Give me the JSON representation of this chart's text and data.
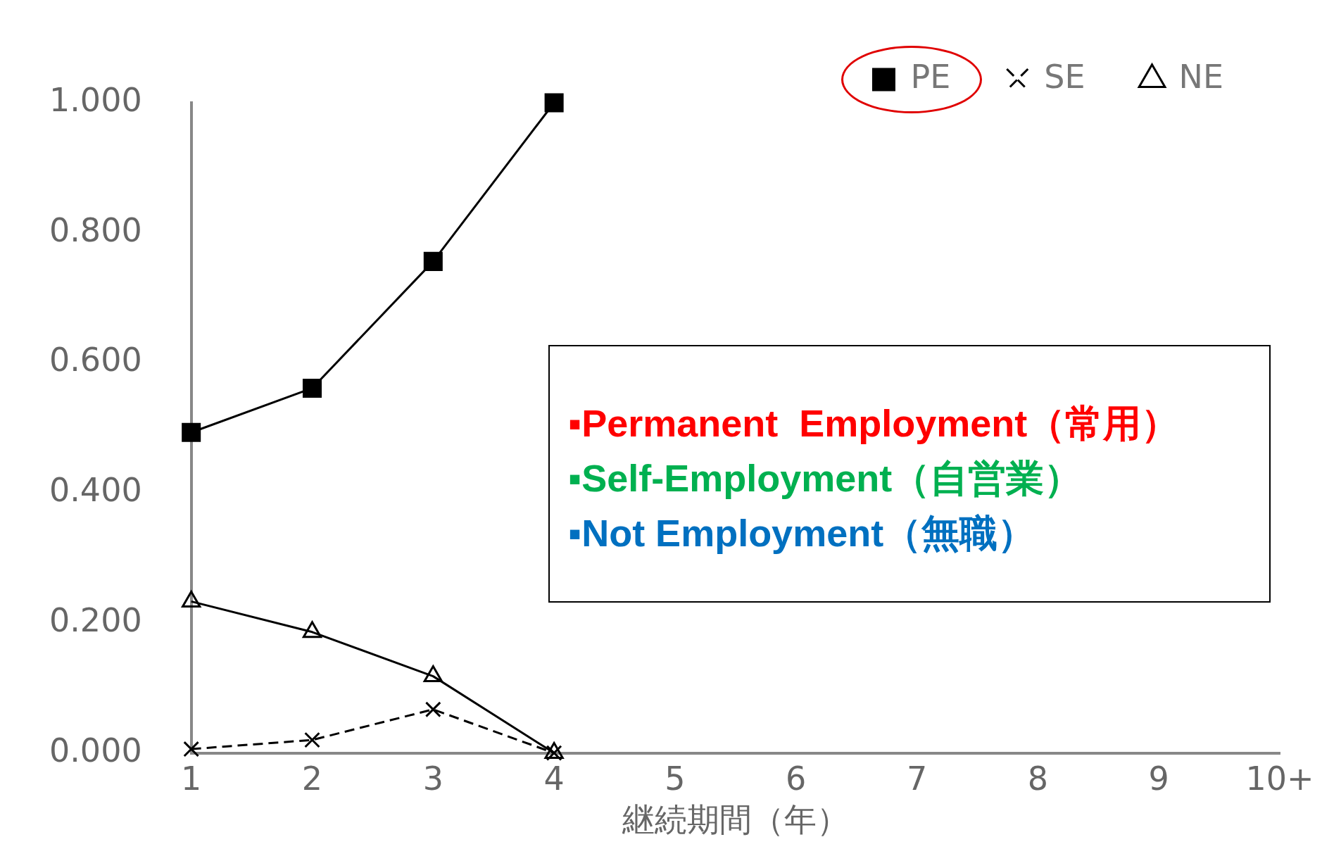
{
  "chart_data": {
    "type": "line",
    "xlabel": "継続期間（年）",
    "categories": [
      "1",
      "2",
      "3",
      "4",
      "5",
      "6",
      "7",
      "8",
      "9",
      "10+"
    ],
    "series": [
      {
        "name": "PE",
        "color": "#000000",
        "marker": "square",
        "line_style": "solid",
        "values": [
          0.493,
          0.561,
          0.756,
          1.0,
          null,
          null,
          null,
          null,
          null,
          null
        ]
      },
      {
        "name": "SE",
        "color": "#000000",
        "marker": "cross",
        "line_style": "dashed",
        "values": [
          0.006,
          0.02,
          0.067,
          0.0,
          null,
          null,
          null,
          null,
          null,
          null
        ]
      },
      {
        "name": "NE",
        "color": "#000000",
        "marker": "triangle",
        "line_style": "solid",
        "values": [
          0.233,
          0.186,
          0.118,
          0.0,
          null,
          null,
          null,
          null,
          null,
          null
        ]
      }
    ],
    "ylim": [
      0,
      1
    ],
    "yticks": [
      {
        "value": 0,
        "label": "0.000"
      },
      {
        "value": 0.2,
        "label": "0.200"
      },
      {
        "value": 0.4,
        "label": "0.400"
      },
      {
        "value": 0.6,
        "label": "0.600"
      },
      {
        "value": 0.8,
        "label": "0.800"
      },
      {
        "value": 1,
        "label": "1.000"
      }
    ],
    "grid": false,
    "legend": "top right",
    "annotations": [
      "▪Permanent  Employment（常用）",
      "▪Self-Employment（自営業）",
      "▪Not Employment（無職）"
    ]
  }
}
